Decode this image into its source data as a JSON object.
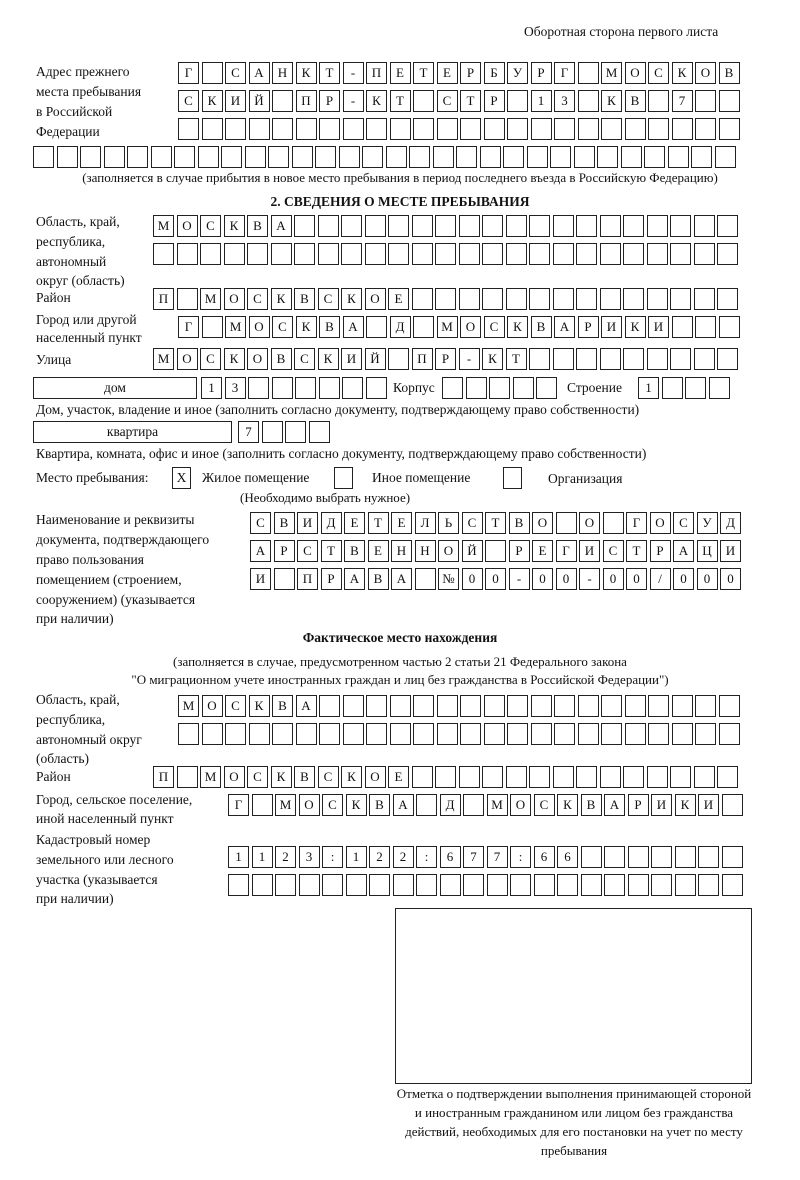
{
  "header": {
    "title": "Оборотная сторона первого листа"
  },
  "prev_address": {
    "label": [
      "Адрес прежнего",
      "места пребывания",
      "в Российской",
      "Федерации"
    ],
    "rows": [
      [
        "Г",
        "",
        "С",
        "А",
        "Н",
        "К",
        "Т",
        "-",
        "П",
        "Е",
        "Т",
        "Е",
        "Р",
        "Б",
        "У",
        "Р",
        "Г",
        "",
        "М",
        "О",
        "С",
        "К",
        "О",
        "В"
      ],
      [
        "С",
        "К",
        "И",
        "Й",
        "",
        "П",
        "Р",
        "-",
        "К",
        "Т",
        "",
        "С",
        "Т",
        "Р",
        "",
        "1",
        "3",
        "",
        "К",
        "В",
        "",
        "7"
      ],
      [],
      []
    ],
    "note": "(заполняется в случае прибытия в новое место пребывания в период последнего въезда в Российскую Федерацию)"
  },
  "section2": {
    "title": "2. СВЕДЕНИЯ О МЕСТЕ ПРЕБЫВАНИЯ",
    "region_label": [
      "Область, край,",
      "республика,",
      "автономный",
      "округ (область)"
    ],
    "region_rows": [
      [
        "М",
        "О",
        "С",
        "К",
        "В",
        "А"
      ],
      []
    ],
    "district_label": "Район",
    "district": [
      "П",
      "",
      "М",
      "О",
      "С",
      "К",
      "В",
      "С",
      "К",
      "О",
      "Е"
    ],
    "city_label": [
      "Город или другой",
      "населенный пункт"
    ],
    "city": [
      "Г",
      "",
      "М",
      "О",
      "С",
      "К",
      "В",
      "А",
      "",
      "Д",
      "",
      "М",
      "О",
      "С",
      "К",
      "В",
      "А",
      "Р",
      "И",
      "К",
      "И"
    ],
    "street_label": "Улица",
    "street": [
      "М",
      "О",
      "С",
      "К",
      "О",
      "В",
      "С",
      "К",
      "И",
      "Й",
      "",
      "П",
      "Р",
      "-",
      "К",
      "Т"
    ],
    "house_type": "дом",
    "house": [
      "1",
      "3"
    ],
    "korpus_label": "Корпус",
    "korpus": [],
    "building_label": "Строение",
    "building": [
      "1"
    ],
    "house_note": "Дом, участок, владение и иное (заполнить согласно документу, подтверждающему право собственности)",
    "flat_type": "квартира",
    "flat": [
      "7"
    ],
    "flat_note": "Квартира, комната, офис и иное (заполнить согласно документу, подтверждающему право собственности)",
    "stay_label": "Место пребывания:",
    "stay_options": [
      {
        "label": "Жилое помещение",
        "mark": "X"
      },
      {
        "label": "Иное помещение",
        "mark": ""
      },
      {
        "label": "Организация",
        "mark": ""
      }
    ],
    "stay_note": "(Необходимо выбрать нужное)",
    "doc_label": [
      "Наименование и реквизиты",
      "документа, подтверждающего",
      "право пользования",
      "помещением (строением,",
      "сооружением) (указывается",
      "при наличии)"
    ],
    "doc_rows": [
      [
        "С",
        "В",
        "И",
        "Д",
        "Е",
        "Т",
        "Е",
        "Л",
        "Ь",
        "С",
        "Т",
        "В",
        "О",
        "",
        "О",
        "",
        "Г",
        "О",
        "С",
        "У",
        "Д"
      ],
      [
        "А",
        "Р",
        "С",
        "Т",
        "В",
        "Е",
        "Н",
        "Н",
        "О",
        "Й",
        "",
        "Р",
        "Е",
        "Г",
        "И",
        "С",
        "Т",
        "Р",
        "А",
        "Ц",
        "И"
      ],
      [
        "И",
        "",
        "П",
        "Р",
        "А",
        "В",
        "А",
        "",
        "№",
        "0",
        "0",
        "-",
        "0",
        "0",
        "-",
        "0",
        "0",
        "/",
        "0",
        "0",
        "0"
      ]
    ]
  },
  "actual": {
    "title": "Фактическое место нахождения",
    "note": [
      "(заполняется в случае, предусмотренном частью 2 статьи 21 Федерального закона",
      "\"О миграционном учете иностранных граждан и лиц без гражданства в Российской Федерации\")"
    ],
    "region_label": [
      "Область, край,",
      "республика,",
      "автономный округ",
      "(область)"
    ],
    "region_rows": [
      [
        "М",
        "О",
        "С",
        "К",
        "В",
        "А"
      ],
      []
    ],
    "district_label": "Район",
    "district": [
      "П",
      "",
      "М",
      "О",
      "С",
      "К",
      "В",
      "С",
      "К",
      "О",
      "Е"
    ],
    "city_label": [
      "Город, сельское поселение,",
      "иной населенный пункт"
    ],
    "city": [
      "Г",
      "",
      "М",
      "О",
      "С",
      "К",
      "В",
      "А",
      "",
      "Д",
      "",
      "М",
      "О",
      "С",
      "К",
      "В",
      "А",
      "Р",
      "И",
      "К",
      "И"
    ],
    "cadastre_label": [
      "Кадастровый номер",
      "земельного или лесного",
      "участка (указывается",
      "при наличии)"
    ],
    "cadastre_rows": [
      [
        "1",
        "1",
        "2",
        "3",
        ":",
        "1",
        "2",
        "2",
        ":",
        "6",
        "7",
        "7",
        ":",
        "6",
        "6"
      ],
      []
    ]
  },
  "confirmation": {
    "caption": "Отметка о подтверждении выполнения принимающей стороной и иностранным гражданином или лицом без гражданства действий, необходимых для его постановки на учет по месту пребывания"
  }
}
